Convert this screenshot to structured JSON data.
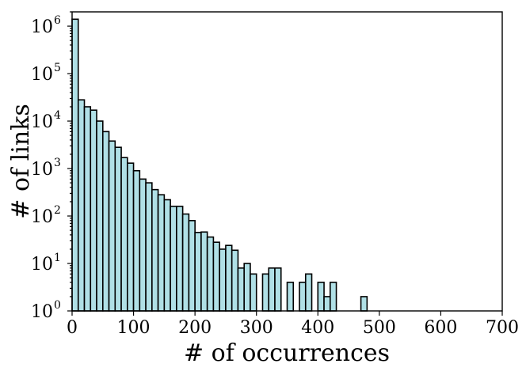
{
  "chart_data": {
    "type": "bar",
    "title": "",
    "xlabel": "# of occurrences",
    "ylabel": "# of links",
    "y_scale": "log",
    "bin_width": 10,
    "bar_color": "#b0e0e6",
    "edge_color": "#000000",
    "xlim": [
      0,
      700
    ],
    "ylim": [
      1,
      2000000
    ],
    "x_ticks": [
      {
        "value": 0,
        "label": "0"
      },
      {
        "value": 100,
        "label": "100"
      },
      {
        "value": 200,
        "label": "200"
      },
      {
        "value": 300,
        "label": "300"
      },
      {
        "value": 400,
        "label": "400"
      },
      {
        "value": 500,
        "label": "500"
      },
      {
        "value": 600,
        "label": "600"
      },
      {
        "value": 700,
        "label": "700"
      }
    ],
    "y_ticks": [
      {
        "value": 1,
        "base": "10",
        "exp": "0"
      },
      {
        "value": 10,
        "base": "10",
        "exp": "1"
      },
      {
        "value": 100,
        "base": "10",
        "exp": "2"
      },
      {
        "value": 1000,
        "base": "10",
        "exp": "3"
      },
      {
        "value": 10000,
        "base": "10",
        "exp": "4"
      },
      {
        "value": 100000,
        "base": "10",
        "exp": "5"
      },
      {
        "value": 1000000,
        "base": "10",
        "exp": "6"
      }
    ],
    "bins": [
      {
        "x": 0,
        "count": 1400000
      },
      {
        "x": 10,
        "count": 28000
      },
      {
        "x": 20,
        "count": 20000
      },
      {
        "x": 30,
        "count": 17000
      },
      {
        "x": 40,
        "count": 10000
      },
      {
        "x": 50,
        "count": 6000
      },
      {
        "x": 60,
        "count": 3800
      },
      {
        "x": 70,
        "count": 2800
      },
      {
        "x": 80,
        "count": 1700
      },
      {
        "x": 90,
        "count": 1300
      },
      {
        "x": 100,
        "count": 900
      },
      {
        "x": 110,
        "count": 600
      },
      {
        "x": 120,
        "count": 500
      },
      {
        "x": 130,
        "count": 360
      },
      {
        "x": 140,
        "count": 280
      },
      {
        "x": 150,
        "count": 220
      },
      {
        "x": 160,
        "count": 160
      },
      {
        "x": 170,
        "count": 160
      },
      {
        "x": 180,
        "count": 110
      },
      {
        "x": 190,
        "count": 80
      },
      {
        "x": 200,
        "count": 45
      },
      {
        "x": 210,
        "count": 46
      },
      {
        "x": 220,
        "count": 36
      },
      {
        "x": 230,
        "count": 28
      },
      {
        "x": 240,
        "count": 20
      },
      {
        "x": 250,
        "count": 24
      },
      {
        "x": 260,
        "count": 19
      },
      {
        "x": 270,
        "count": 8
      },
      {
        "x": 280,
        "count": 10
      },
      {
        "x": 290,
        "count": 6
      },
      {
        "x": 310,
        "count": 6
      },
      {
        "x": 320,
        "count": 8
      },
      {
        "x": 330,
        "count": 8
      },
      {
        "x": 350,
        "count": 4
      },
      {
        "x": 370,
        "count": 4
      },
      {
        "x": 380,
        "count": 6
      },
      {
        "x": 400,
        "count": 4
      },
      {
        "x": 410,
        "count": 2
      },
      {
        "x": 420,
        "count": 4
      },
      {
        "x": 470,
        "count": 2
      }
    ]
  }
}
